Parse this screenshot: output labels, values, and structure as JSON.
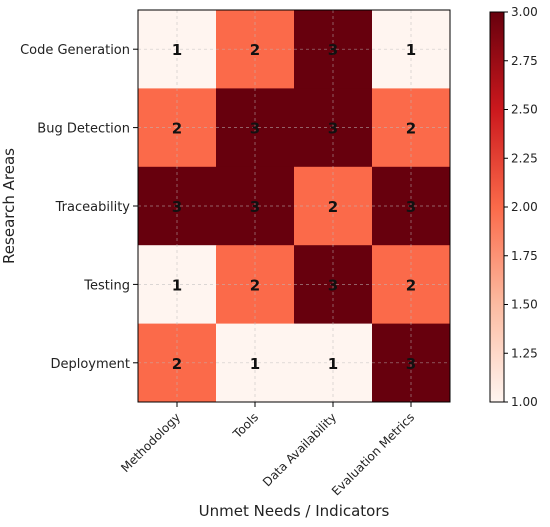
{
  "chart_data": {
    "type": "heatmap",
    "title": "",
    "xlabel": "Unmet Needs / Indicators",
    "ylabel": "Research Areas",
    "x_categories": [
      "Methodology",
      "Tools",
      "Data Availability",
      "Evaluation Metrics"
    ],
    "y_categories": [
      "Code Generation",
      "Bug Detection",
      "Traceability",
      "Testing",
      "Deployment"
    ],
    "values": [
      [
        1,
        2,
        3,
        1
      ],
      [
        2,
        3,
        3,
        2
      ],
      [
        3,
        3,
        2,
        3
      ],
      [
        1,
        2,
        3,
        2
      ],
      [
        2,
        1,
        1,
        3
      ]
    ],
    "value_labels": [
      [
        "1",
        "2",
        "3",
        "1"
      ],
      [
        "2",
        "3",
        "3",
        "2"
      ],
      [
        "3",
        "3",
        "2",
        "3"
      ],
      [
        "1",
        "2",
        "3",
        "2"
      ],
      [
        "2",
        "1",
        "1",
        "3"
      ]
    ],
    "colorbar": {
      "range": [
        1.0,
        3.0
      ],
      "ticks": [
        "1.00",
        "1.25",
        "1.50",
        "1.75",
        "2.00",
        "2.25",
        "2.50",
        "2.75",
        "3.00"
      ],
      "colors": {
        "low": "#fff5f0",
        "mid": "#fb6a4a",
        "high": "#67000d"
      }
    },
    "grid": true
  }
}
